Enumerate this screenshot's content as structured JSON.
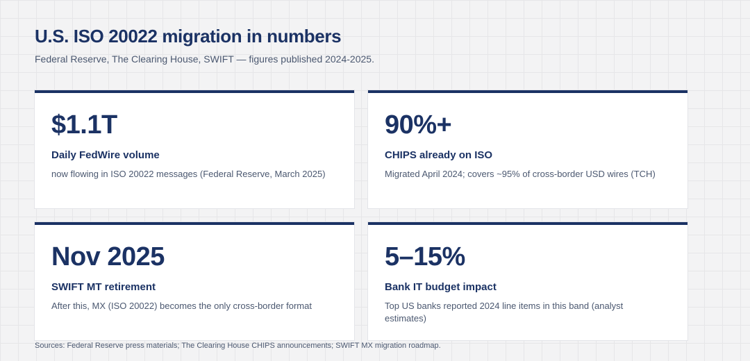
{
  "header": {
    "title": "U.S. ISO 20022 migration in numbers",
    "subtitle": "Federal Reserve, The Clearing House, SWIFT — figures published 2024-2025."
  },
  "cards": [
    {
      "stat": "$1.1T",
      "label": "Daily FedWire volume",
      "description": "now flowing in ISO 20022 messages (Federal Reserve, March 2025)"
    },
    {
      "stat": "90%+",
      "label": "CHIPS already on ISO",
      "description": "Migrated April 2024; covers ~95% of cross-border USD wires (TCH)"
    },
    {
      "stat": "Nov 2025",
      "label": "SWIFT MT retirement",
      "description": "After this, MX (ISO 20022) becomes the only cross-border format"
    },
    {
      "stat": "5–15%",
      "label": "Bank IT budget impact",
      "description": "Top US banks reported 2024 line items in this band (analyst estimates)"
    }
  ],
  "footer": {
    "sources": "Sources: Federal Reserve press materials; The Clearing House CHIPS announcements; SWIFT MX migration roadmap."
  },
  "colors": {
    "accent": "#1b3264",
    "body_text": "#4b5870",
    "card_background": "#ffffff",
    "page_background": "#f3f3f4"
  }
}
